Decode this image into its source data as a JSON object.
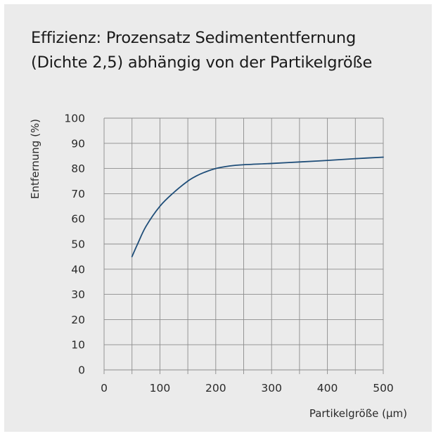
{
  "chart_data": {
    "type": "line",
    "title_line1": "Effizienz: Prozensatz Sedimententfernung",
    "title_line2": "(Dichte 2,5) abhängig von der Partikelgröße",
    "xlabel": "Partikelgröße (µm)",
    "ylabel": "Entfernung (%)",
    "xlim": [
      0,
      500
    ],
    "ylim": [
      0,
      100
    ],
    "x_ticks": [
      0,
      100,
      200,
      300,
      400,
      500
    ],
    "y_ticks": [
      0,
      10,
      20,
      30,
      40,
      50,
      60,
      70,
      80,
      90,
      100
    ],
    "grid": true,
    "series": [
      {
        "color": "#1f4e79",
        "x": [
          50,
          60,
          75,
          100,
          125,
          150,
          165,
          180,
          200,
          225,
          250,
          300,
          350,
          400,
          450,
          500
        ],
        "y": [
          45,
          50,
          57,
          65,
          70.5,
          75,
          77,
          78.5,
          80,
          81,
          81.5,
          82,
          82.6,
          83.2,
          83.9,
          84.5
        ]
      }
    ]
  }
}
